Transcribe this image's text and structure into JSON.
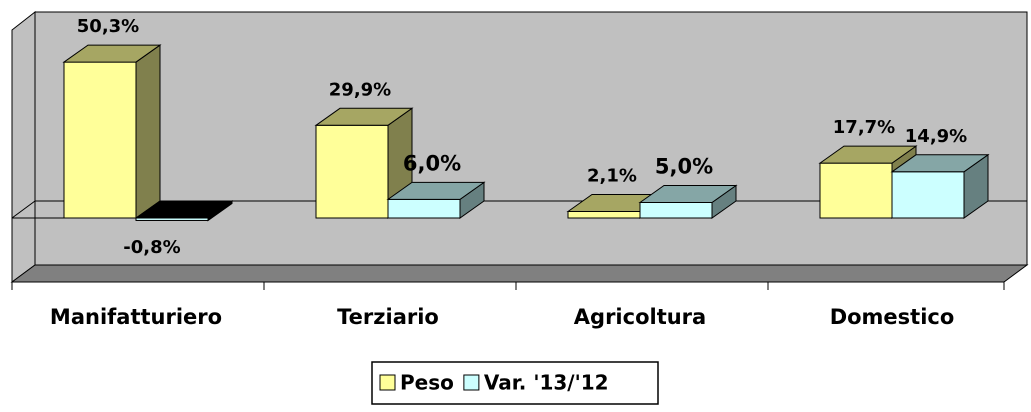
{
  "chart_data": {
    "type": "bar3d",
    "categories": [
      "Manifatturiero",
      "Terziario",
      "Agricoltura",
      "Domestico"
    ],
    "series": [
      {
        "name": "Peso",
        "color": "#ffff99",
        "values": [
          50.3,
          29.9,
          2.1,
          17.7
        ],
        "value_labels": [
          "50,3%",
          "29,9%",
          "2,1%",
          "17,7%"
        ]
      },
      {
        "name": "Var. '13/'12",
        "color": "#ccffff",
        "values": [
          -0.8,
          6.0,
          5.0,
          14.9
        ],
        "value_labels": [
          "-0,8%",
          "6,0%",
          "5,0%",
          "14,9%"
        ]
      }
    ],
    "ylim": [
      -20,
      60
    ]
  }
}
